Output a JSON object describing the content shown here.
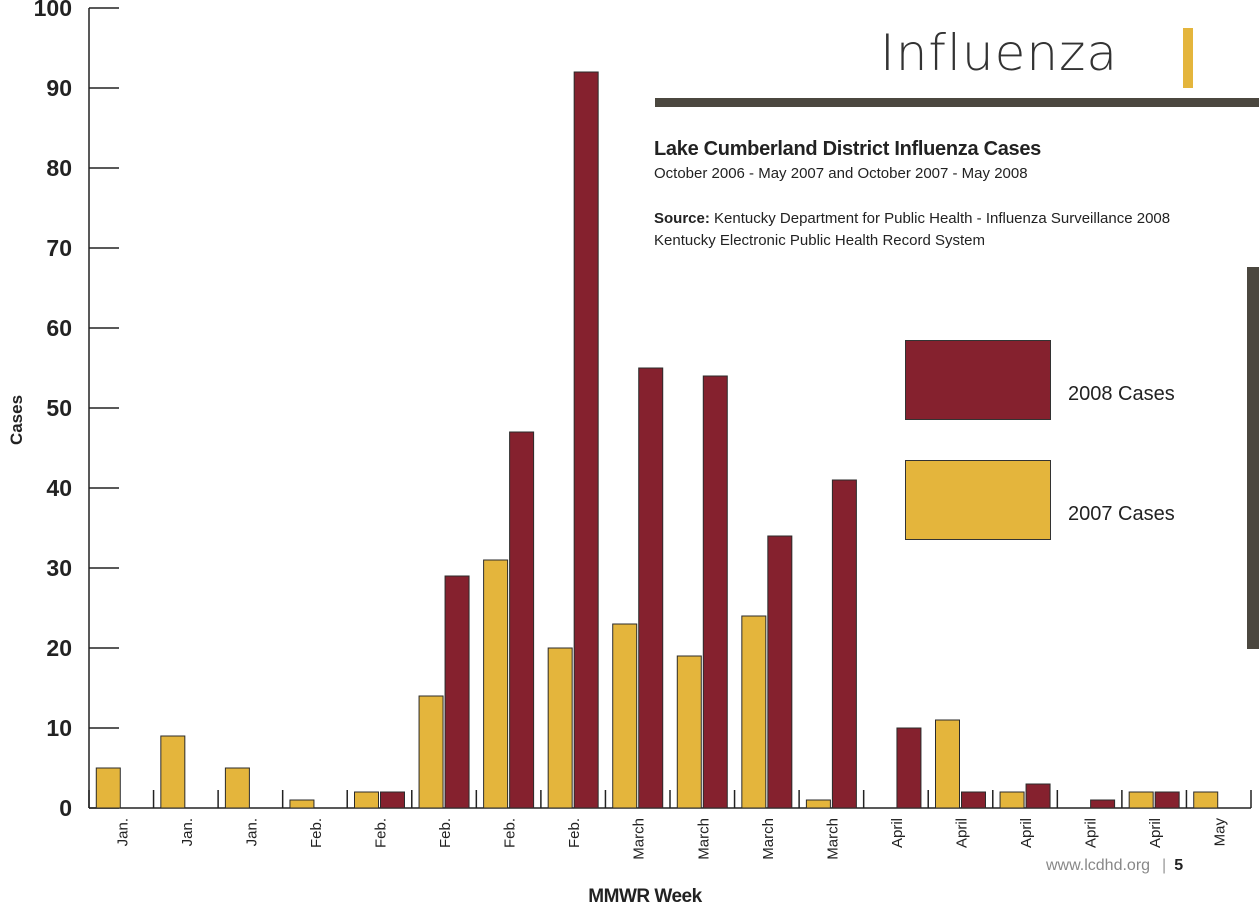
{
  "header": {
    "section_title": "Influenza",
    "chart_title": "Lake Cumberland District Influenza Cases",
    "subtitle": "October 2006 - May 2007 and October 2007 - May 2008",
    "source_label": "Source:",
    "source_line1": "Kentucky Department for Public Health - Influenza Surveillance 2008",
    "source_line2": "Kentucky Electronic Public Health Record System"
  },
  "footer": {
    "url": "www.lcdhd.org",
    "page_number": "5"
  },
  "colors": {
    "series_2008": "#85212e",
    "series_2007": "#e4b53c",
    "accent": "#e4b53c",
    "rule": "#4b473f"
  },
  "chart_data": {
    "type": "bar",
    "xlabel": "MMWR Week",
    "ylabel": "Cases",
    "ylim": [
      0,
      100
    ],
    "yticks": [
      0,
      10,
      20,
      30,
      40,
      50,
      60,
      70,
      80,
      90,
      100
    ],
    "categories": [
      "Jan.",
      "Jan.",
      "Jan.",
      "Feb.",
      "Feb.",
      "Feb.",
      "Feb.",
      "Feb.",
      "March",
      "March",
      "March",
      "March",
      "April",
      "April",
      "April",
      "April",
      "April",
      "May"
    ],
    "series": [
      {
        "name": "2007 Cases",
        "values": [
          5,
          9,
          5,
          1,
          2,
          14,
          31,
          20,
          23,
          19,
          24,
          1,
          0,
          11,
          2,
          0,
          2,
          2
        ]
      },
      {
        "name": "2008 Cases",
        "values": [
          0,
          0,
          0,
          0,
          2,
          29,
          47,
          92,
          55,
          54,
          34,
          41,
          10,
          2,
          3,
          1,
          2,
          0
        ]
      }
    ],
    "legend_position": "right",
    "grid": false
  }
}
